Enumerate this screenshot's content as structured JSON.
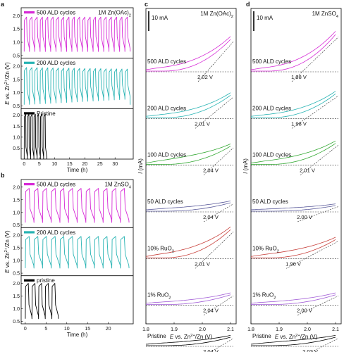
{
  "figure": {
    "panel_labels": [
      "a",
      "b",
      "c",
      "d"
    ]
  },
  "colors": {
    "magenta": "#d62ad6",
    "cyan": "#27b3b3",
    "black": "#000000",
    "green": "#32a832",
    "navy": "#5a5a9a",
    "red": "#c8413c",
    "purple": "#a15bd6",
    "blue_dash": "#1e3a8a"
  },
  "chart_data": [
    {
      "type": "line",
      "panel": "a",
      "electrolyte": "1M Zn(OAc)",
      "electrolyte_sub": "2",
      "xlabel": "Time (h)",
      "ylabel_italic": "E",
      "ylabel_rest": " vs. Zn",
      "ylabel_sup": "2+",
      "ylabel_tail": "/Zn (V)",
      "xlim": [
        -1,
        36
      ],
      "xticks": [
        "0",
        "5",
        "10",
        "15",
        "20",
        "25",
        "30"
      ],
      "xtick_values": [
        0,
        5,
        10,
        15,
        20,
        25,
        30
      ],
      "subplots": [
        {
          "legend": "500 ALD cycles",
          "color_key": "magenta",
          "ylim": [
            0.4,
            2.3
          ],
          "yticks": [
            "0.5",
            "1.0",
            "1.5",
            "2.0"
          ],
          "ytick_values": [
            0.5,
            1.0,
            1.5,
            2.0
          ],
          "cycles": 20,
          "x_end": 35,
          "charge_plateau": 1.95,
          "discharge_end": 0.65,
          "decay": 0
        },
        {
          "legend": "200 ALD cycles",
          "color_key": "cyan",
          "ylim": [
            0.4,
            2.3
          ],
          "yticks": [
            "0.5",
            "1.0",
            "1.5",
            "2.0"
          ],
          "ytick_values": [
            0.5,
            1.0,
            1.5,
            2.0
          ],
          "cycles": 20,
          "x_end": 35,
          "charge_plateau": 1.95,
          "discharge_end": 0.55,
          "decay": 0.2
        },
        {
          "legend": "Pristine",
          "color_key": "black",
          "ylim": [
            0.0,
            2.3
          ],
          "yticks": [
            "0.5",
            "1.0",
            "1.5",
            "2.0"
          ],
          "ytick_values": [
            0.5,
            1.0,
            1.5,
            2.0
          ],
          "cycles": 7,
          "x_end": 7.5,
          "charge_plateau": 2.05,
          "discharge_end": 0.0,
          "decay": 0
        }
      ]
    },
    {
      "type": "line",
      "panel": "b",
      "electrolyte": "1M ZnSO",
      "electrolyte_sub": "4",
      "xlabel": "Time (h)",
      "ylabel_italic": "E",
      "ylabel_rest": " vs. Zn",
      "ylabel_sup": "2+",
      "ylabel_tail": "/Zn (V)",
      "xlim": [
        -1,
        26
      ],
      "xticks": [
        "0",
        "5",
        "10",
        "15",
        "20"
      ],
      "xtick_values": [
        0,
        5,
        10,
        15,
        20
      ],
      "subplots": [
        {
          "legend": "500 ALD cycles",
          "color_key": "magenta",
          "ylim": [
            0.4,
            2.3
          ],
          "yticks": [
            "0.5",
            "1.0",
            "1.5",
            "2.0"
          ],
          "ytick_values": [
            0.5,
            1.0,
            1.5,
            2.0
          ],
          "cycles": 12,
          "x_end": 25,
          "charge_plateau": 1.95,
          "discharge_end": 0.6,
          "decay": 0
        },
        {
          "legend": "200 ALD cycles",
          "color_key": "cyan",
          "ylim": [
            0.4,
            2.3
          ],
          "yticks": [
            "0.5",
            "1.0",
            "1.5",
            "2.0"
          ],
          "ytick_values": [
            0.5,
            1.0,
            1.5,
            2.0
          ],
          "cycles": 12,
          "x_end": 25,
          "charge_plateau": 1.95,
          "discharge_end": 0.7,
          "decay": 0
        },
        {
          "legend": "pristine",
          "color_key": "black",
          "ylim": [
            0.4,
            2.3
          ],
          "yticks": [
            "0.5",
            "1.0",
            "1.5",
            "2.0"
          ],
          "ytick_values": [
            0.5,
            1.0,
            1.5,
            2.0
          ],
          "cycles": 5,
          "x_end": 8,
          "charge_plateau": 2.0,
          "discharge_end": 0.6,
          "decay": 0
        }
      ]
    },
    {
      "type": "line",
      "panel": "c",
      "electrolyte": "1M Zn(OAc)",
      "electrolyte_sub": "2",
      "scale_bar": "10 mA",
      "xlabel_italic": "E",
      "xlabel_rest": " vs. Zn",
      "xlabel_sup": "2+",
      "xlabel_tail": "/Zn (V)",
      "ylabel": "I (mA)",
      "xlim": [
        1.8,
        2.12
      ],
      "xticks": [
        "1.8",
        "1.9",
        "2.0",
        "2.1"
      ],
      "xtick_values": [
        1.8,
        1.9,
        2.0,
        2.1
      ],
      "series": [
        {
          "name": "500 ALD cycles",
          "color_key": "magenta",
          "onset_V": 2.02,
          "onset_label": "2.02 V",
          "rise": 45,
          "hysteresis": 6
        },
        {
          "name": "200 ALD cycles",
          "color_key": "cyan",
          "onset_V": 2.01,
          "onset_label": "2.01 V",
          "rise": 32,
          "hysteresis": 5
        },
        {
          "name": "100 ALD cycles",
          "color_key": "green",
          "onset_V": 2.04,
          "onset_label": "2.04 V",
          "rise": 26,
          "hysteresis": 7
        },
        {
          "name": "50 ALD cycles",
          "color_key": "navy",
          "onset_V": 2.04,
          "onset_label": "2.04 V",
          "rise": 12,
          "hysteresis": 3
        },
        {
          "name": "10% RuO",
          "name_sub": "2",
          "color_key": "red",
          "onset_V": 2.01,
          "onset_label": "2.01 V",
          "rise": 40,
          "hysteresis": 7
        },
        {
          "name": "1% RuO",
          "name_sub": "2",
          "color_key": "purple",
          "onset_V": 2.04,
          "onset_label": "2.04 V",
          "rise": 14,
          "hysteresis": 3
        },
        {
          "name": "Pristine",
          "color_key": "black",
          "onset_V": 2.04,
          "onset_label": "2.04 V",
          "rise": 12,
          "hysteresis": 3
        }
      ]
    },
    {
      "type": "line",
      "panel": "d",
      "electrolyte": "1M ZnSO",
      "electrolyte_sub": "4",
      "scale_bar": "10 mA",
      "xlabel_italic": "E",
      "xlabel_rest": " vs. Zn",
      "xlabel_sup": "2+",
      "xlabel_tail": "/Zn (V)",
      "ylabel": "I (mA)",
      "xlim": [
        1.8,
        2.12
      ],
      "xticks": [
        "1.8",
        "1.9",
        "2.0",
        "2.1"
      ],
      "xtick_values": [
        1.8,
        1.9,
        2.0,
        2.1
      ],
      "series": [
        {
          "name": "500 ALD cycles",
          "color_key": "magenta",
          "onset_V": 1.98,
          "onset_label": "1.98 V",
          "rise": 52,
          "hysteresis": 6
        },
        {
          "name": "200 ALD cycles",
          "color_key": "cyan",
          "onset_V": 1.98,
          "onset_label": "1.98 V",
          "rise": 34,
          "hysteresis": 5
        },
        {
          "name": "100 ALD cycles",
          "color_key": "green",
          "onset_V": 2.01,
          "onset_label": "2.01 V",
          "rise": 30,
          "hysteresis": 6
        },
        {
          "name": "50 ALD cycles",
          "color_key": "navy",
          "onset_V": 2.0,
          "onset_label": "2.00 V",
          "rise": 8,
          "hysteresis": 2
        },
        {
          "name": "10% RuO",
          "name_sub": "2",
          "color_key": "red",
          "onset_V": 1.96,
          "onset_label": "1.96 V",
          "rise": 26,
          "hysteresis": 6
        },
        {
          "name": "1% RuO",
          "name_sub": "2",
          "color_key": "purple",
          "onset_V": 2.0,
          "onset_label": "2.00 V",
          "rise": 14,
          "hysteresis": 3
        },
        {
          "name": "Pristine",
          "color_key": "black",
          "onset_V": 2.02,
          "onset_label": "2.02 V",
          "rise": 12,
          "hysteresis": 4
        }
      ]
    }
  ]
}
